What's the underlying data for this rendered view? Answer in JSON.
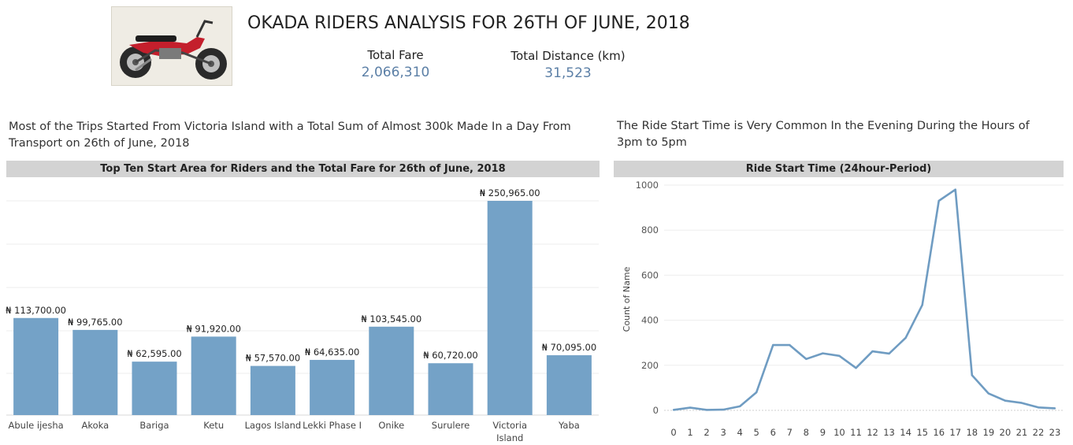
{
  "page": {
    "title": "OKADA RIDERS ANALYSIS FOR 26TH OF JUNE, 2018"
  },
  "kpis": {
    "total_fare": {
      "label": "Total Fare",
      "value": "2,066,310"
    },
    "total_distance": {
      "label": "Total Distance (km)",
      "value": "31,523"
    }
  },
  "captions": {
    "left": "Most of the Trips Started From Victoria Island with a Total Sum of Almost 300k Made In a Day From Transport on 26th of June, 2018",
    "right": "The Ride Start Time is Very Common In the Evening During the Hours of 3pm to 5pm"
  },
  "colors": {
    "bar": "#74a2c7",
    "line": "#6f9cc2",
    "header_bg": "#d3d3d3",
    "kpi_value": "#5b7fa6",
    "motorbike": "#c41f2c"
  },
  "logo": {
    "icon": "motorbike-icon"
  },
  "chart_data": [
    {
      "type": "bar",
      "title": "Top Ten Start Area for Riders and the Total Fare for 26th of June, 2018",
      "categories": [
        "Abule ijesha",
        "Akoka",
        "Bariga",
        "Ketu",
        "Lagos Island",
        "Lekki Phase I",
        "Onike",
        "Surulere",
        "Victoria Island",
        "Yaba"
      ],
      "values": [
        113700,
        99765,
        62595,
        91920,
        57570,
        64635,
        103545,
        60720,
        250965,
        70095
      ],
      "labels": [
        "₦ 113,700.00",
        "₦ 99,765.00",
        "₦ 62,595.00",
        "₦ 91,920.00",
        "₦ 57,570.00",
        "₦ 64,635.00",
        "₦ 103,545.00",
        "₦ 60,720.00",
        "₦ 250,965.00",
        "₦ 70,095.00"
      ],
      "ylim": [
        0,
        250965
      ],
      "grid": true,
      "xlabel": "",
      "ylabel": ""
    },
    {
      "type": "line",
      "title": "Ride Start Time (24hour-Period)",
      "x": [
        0,
        1,
        2,
        3,
        4,
        5,
        6,
        7,
        8,
        9,
        10,
        11,
        12,
        13,
        14,
        15,
        16,
        17,
        18,
        19,
        20,
        21,
        22,
        23
      ],
      "y": [
        2,
        12,
        2,
        3,
        18,
        80,
        290,
        290,
        228,
        253,
        242,
        188,
        262,
        252,
        322,
        468,
        930,
        980,
        156,
        75,
        43,
        33,
        13,
        9
      ],
      "yticks": [
        0,
        200,
        400,
        600,
        800,
        1000
      ],
      "ylim": [
        0,
        1000
      ],
      "xlabel": "",
      "ylabel": "Count of Name",
      "grid": true
    }
  ]
}
